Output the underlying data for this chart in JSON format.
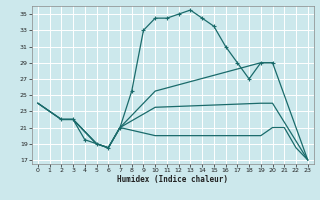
{
  "xlabel": "Humidex (Indice chaleur)",
  "bg_color": "#cce8ec",
  "grid_color": "#ffffff",
  "line_color": "#1a6b6b",
  "xlim": [
    -0.5,
    23.5
  ],
  "ylim": [
    16.5,
    36
  ],
  "xticks": [
    0,
    1,
    2,
    3,
    4,
    5,
    6,
    7,
    8,
    9,
    10,
    11,
    12,
    13,
    14,
    15,
    16,
    17,
    18,
    19,
    20,
    21,
    22,
    23
  ],
  "yticks": [
    17,
    19,
    21,
    23,
    25,
    27,
    29,
    31,
    33,
    35
  ],
  "series": [
    {
      "x": [
        2,
        3,
        4,
        5,
        6,
        7,
        8,
        9,
        10,
        11,
        12,
        13,
        14,
        15,
        16,
        17,
        18,
        19,
        20
      ],
      "y": [
        22,
        22,
        19.5,
        19,
        18.5,
        21,
        25.5,
        33,
        34.5,
        34.5,
        35,
        35.5,
        34.5,
        33.5,
        31,
        29,
        27,
        29,
        29
      ],
      "marker": "+",
      "linewidth": 0.9,
      "markersize": 3.5
    },
    {
      "x": [
        0,
        1,
        2,
        3,
        5,
        6,
        7,
        10,
        19,
        20,
        23
      ],
      "y": [
        24,
        23,
        22,
        22,
        19,
        18.5,
        21,
        25.5,
        29,
        29,
        17
      ],
      "marker": null,
      "linewidth": 0.9,
      "markersize": 0
    },
    {
      "x": [
        0,
        2,
        3,
        5,
        6,
        7,
        10,
        19,
        20,
        23
      ],
      "y": [
        24,
        22,
        22,
        19,
        18.5,
        21,
        23.5,
        24,
        24,
        17
      ],
      "marker": null,
      "linewidth": 0.9,
      "markersize": 0
    },
    {
      "comment": "bottom fan line: 0,24 -> cluster -> 7,21 -> flat ~20 -> 20,21 -> 21,21 -> 22,18.5 -> 23,17",
      "x": [
        0,
        2,
        3,
        5,
        6,
        7,
        10,
        19,
        20,
        21,
        22,
        23
      ],
      "y": [
        24,
        22,
        22,
        19,
        18.5,
        21,
        20,
        20,
        21,
        21,
        18.5,
        17
      ],
      "marker": null,
      "linewidth": 0.9,
      "markersize": 0
    }
  ]
}
